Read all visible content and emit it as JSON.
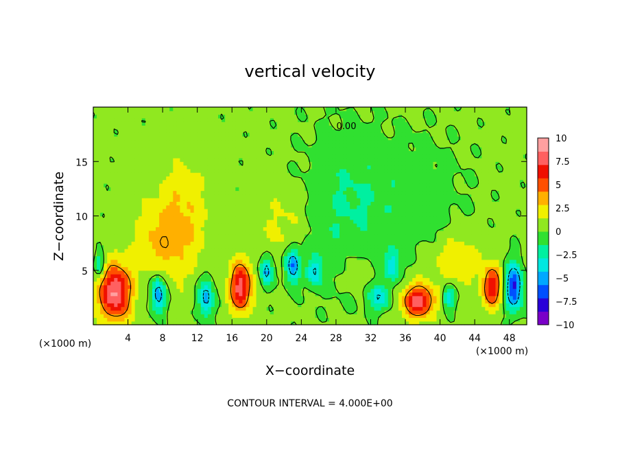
{
  "chart_data": {
    "type": "heatmap",
    "title": "vertical velocity",
    "xlabel": "X−coordinate",
    "ylabel": "Z−coordinate",
    "x_unit_left": "(×1000 m)",
    "x_unit_right": "(×1000 m)",
    "xlim": [
      0,
      50
    ],
    "ylim": [
      0,
      20
    ],
    "x_ticks": [
      4,
      8,
      12,
      16,
      20,
      24,
      28,
      32,
      36,
      40,
      44,
      48
    ],
    "x_tick_labels": [
      "4",
      "8",
      "12",
      "16",
      "20",
      "24",
      "28",
      "32",
      "36",
      "40",
      "44",
      "48"
    ],
    "y_ticks": [
      5,
      10,
      15
    ],
    "y_tick_labels": [
      "5",
      "10",
      "15"
    ],
    "footer": "CONTOUR INTERVAL = 4.000E+00",
    "contour_label": "0.00",
    "colorbar": {
      "range": [
        -10,
        10
      ],
      "ticks": [
        10,
        7.5,
        5,
        2.5,
        0,
        -2.5,
        -5,
        -7.5,
        -10
      ],
      "tick_labels": [
        "10",
        "7.5",
        "5",
        "2.5",
        "0",
        "−2.5",
        "−5",
        "−7.5",
        "−10"
      ],
      "colors": [
        "#7a00c8",
        "#2a00d8",
        "#0050ff",
        "#00a8ff",
        "#00e8e0",
        "#00f0a0",
        "#30e030",
        "#90e820",
        "#f0f000",
        "#ffb000",
        "#ff5000",
        "#f01000",
        "#ff6060",
        "#ffa0a0"
      ]
    },
    "features": [
      {
        "kind": "updraft",
        "x": 2.5,
        "z": 3.0,
        "sx": 1.3,
        "sz": 1.8,
        "w": 8.5
      },
      {
        "kind": "updraft",
        "x": 17.0,
        "z": 3.5,
        "sx": 0.9,
        "sz": 1.6,
        "w": 7.5
      },
      {
        "kind": "updraft",
        "x": 37.5,
        "z": 2.2,
        "sx": 1.3,
        "sz": 1.1,
        "w": 7.5
      },
      {
        "kind": "updraft",
        "x": 46.0,
        "z": 3.5,
        "sx": 0.8,
        "sz": 1.3,
        "w": 6.5
      },
      {
        "kind": "updraft",
        "x": 10.0,
        "z": 9.5,
        "sx": 2.2,
        "sz": 3.5,
        "w": 2.8
      },
      {
        "kind": "updraft",
        "x": 7.0,
        "z": 7.5,
        "sx": 2.0,
        "sz": 2.0,
        "w": 2.0
      },
      {
        "kind": "updraft",
        "x": 22.0,
        "z": 9.0,
        "sx": 2.0,
        "sz": 2.5,
        "w": 1.5
      },
      {
        "kind": "updraft",
        "x": 42.0,
        "z": 6.0,
        "sx": 2.0,
        "sz": 1.5,
        "w": 2.5
      },
      {
        "kind": "updraft",
        "x": 30.5,
        "z": 5.0,
        "sx": 1.0,
        "sz": 1.0,
        "w": 1.8
      },
      {
        "kind": "downdraft",
        "x": 7.5,
        "z": 2.8,
        "sx": 0.6,
        "sz": 1.2,
        "w": -6.0
      },
      {
        "kind": "downdraft",
        "x": 13.0,
        "z": 2.5,
        "sx": 0.6,
        "sz": 1.3,
        "w": -5.5
      },
      {
        "kind": "downdraft",
        "x": 20.0,
        "z": 5.0,
        "sx": 0.5,
        "sz": 1.0,
        "w": -5.5
      },
      {
        "kind": "downdraft",
        "x": 23.0,
        "z": 5.5,
        "sx": 0.6,
        "sz": 1.2,
        "w": -6.5
      },
      {
        "kind": "downdraft",
        "x": 25.5,
        "z": 5.0,
        "sx": 0.6,
        "sz": 1.0,
        "w": -4.5
      },
      {
        "kind": "downdraft",
        "x": 33.0,
        "z": 2.5,
        "sx": 0.9,
        "sz": 0.8,
        "w": -4.0
      },
      {
        "kind": "downdraft",
        "x": 34.5,
        "z": 5.5,
        "sx": 0.6,
        "sz": 1.0,
        "w": -4.0
      },
      {
        "kind": "downdraft",
        "x": 41.0,
        "z": 2.5,
        "sx": 0.5,
        "sz": 0.8,
        "w": -4.0
      },
      {
        "kind": "downdraft",
        "x": 48.5,
        "z": 3.5,
        "sx": 0.7,
        "sz": 1.5,
        "w": -8.0
      },
      {
        "kind": "downdraft",
        "x": 0.8,
        "z": 5.5,
        "sx": 0.4,
        "sz": 0.8,
        "w": -4.0
      },
      {
        "kind": "downdraft",
        "x": 29.0,
        "z": 11.0,
        "sx": 3.5,
        "sz": 5.0,
        "w": -1.8
      },
      {
        "kind": "downdraft",
        "x": 37.0,
        "z": 12.0,
        "sx": 4.0,
        "sz": 4.0,
        "w": -1.2
      }
    ]
  }
}
